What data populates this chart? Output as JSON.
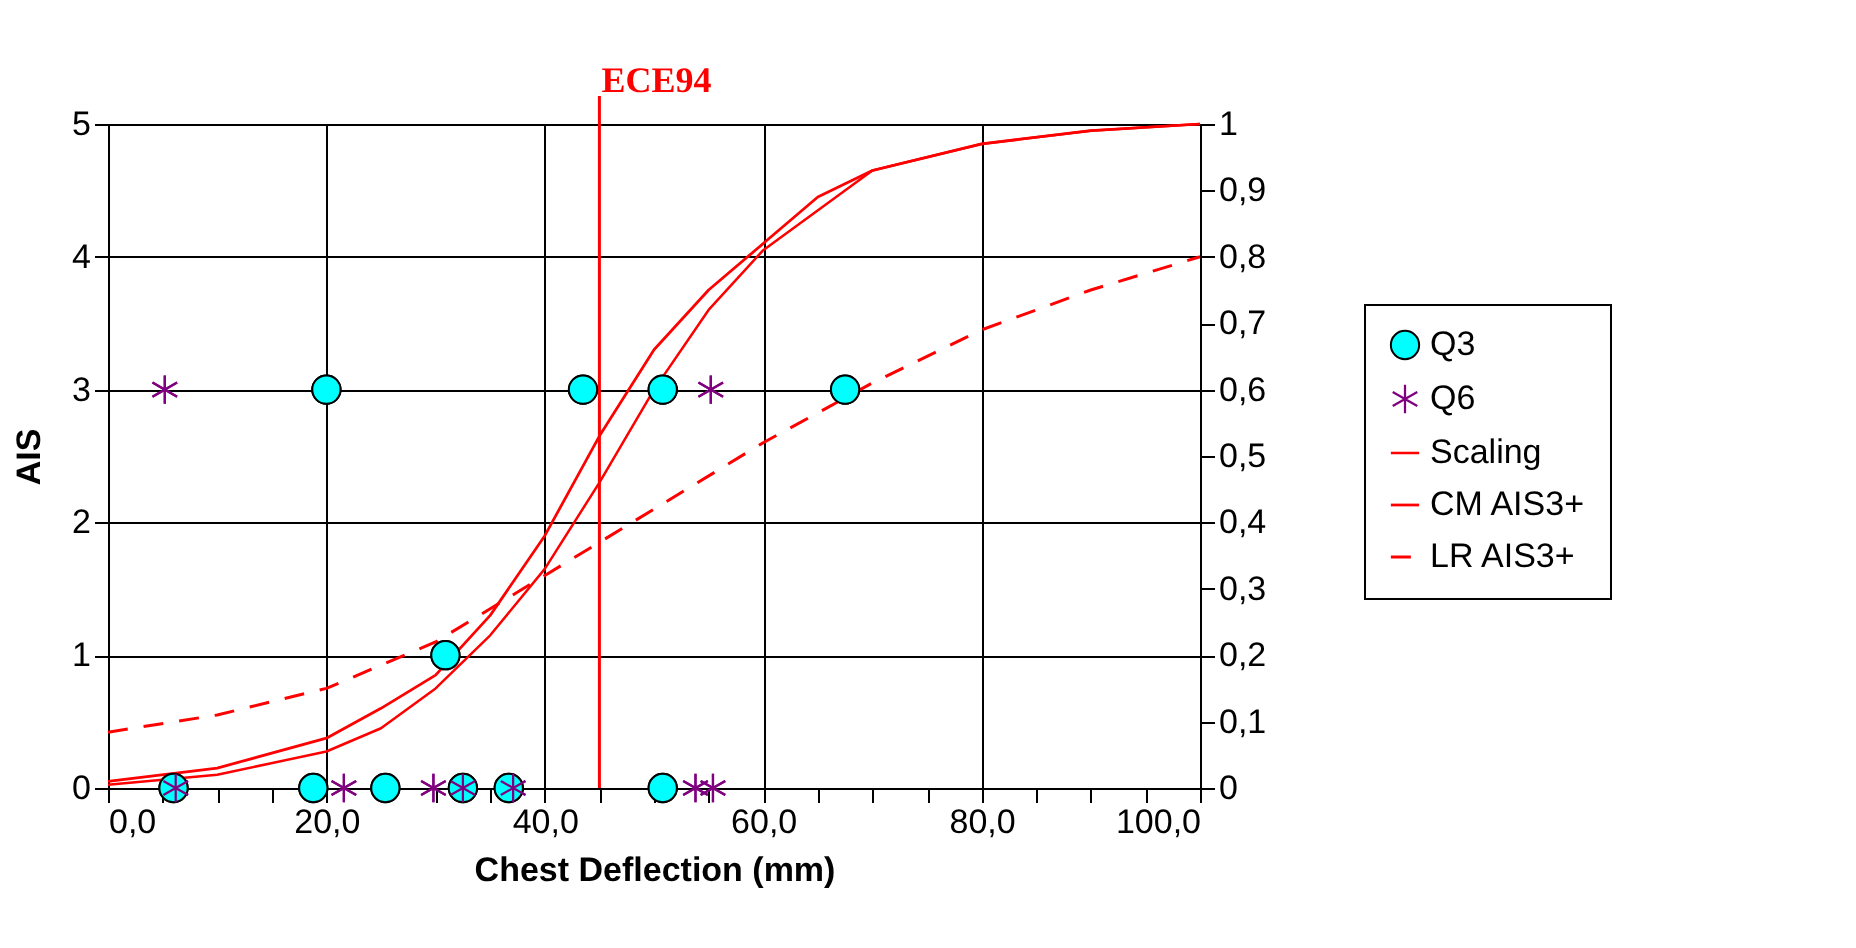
{
  "chart_data": {
    "type": "scatter",
    "xlabel": "Chest Deflection (mm)",
    "ylabel": "AIS",
    "xlim": [
      0,
      100
    ],
    "ylim": [
      0,
      5
    ],
    "y2lim": [
      0,
      1
    ],
    "xticks": [
      {
        "value": 0,
        "label": "0,0"
      },
      {
        "value": 5,
        "label": null
      },
      {
        "value": 10,
        "label": null
      },
      {
        "value": 15,
        "label": null
      },
      {
        "value": 20,
        "label": "20,0"
      },
      {
        "value": 25,
        "label": null
      },
      {
        "value": 30,
        "label": null
      },
      {
        "value": 35,
        "label": null
      },
      {
        "value": 40,
        "label": "40,0"
      },
      {
        "value": 45,
        "label": null
      },
      {
        "value": 50,
        "label": null
      },
      {
        "value": 55,
        "label": null
      },
      {
        "value": 60,
        "label": "60,0"
      },
      {
        "value": 65,
        "label": null
      },
      {
        "value": 70,
        "label": null
      },
      {
        "value": 75,
        "label": null
      },
      {
        "value": 80,
        "label": "80,0"
      },
      {
        "value": 85,
        "label": null
      },
      {
        "value": 90,
        "label": null
      },
      {
        "value": 95,
        "label": null
      },
      {
        "value": 100,
        "label": "100,0"
      }
    ],
    "yticks": [
      0,
      1,
      2,
      3,
      4,
      5
    ],
    "y2ticks": [
      0,
      {
        "value": 0.1,
        "label": "0,1"
      },
      {
        "value": 0.2,
        "label": "0,2"
      },
      {
        "value": 0.3,
        "label": "0,3"
      },
      {
        "value": 0.4,
        "label": "0,4"
      },
      {
        "value": 0.5,
        "label": "0,5"
      },
      {
        "value": 0.6,
        "label": "0,6"
      },
      {
        "value": 0.7,
        "label": "0,7"
      },
      {
        "value": 0.8,
        "label": "0,8"
      },
      {
        "value": 0.9,
        "label": "0,9"
      },
      1
    ],
    "grid": true,
    "legend": "right",
    "ref_lines": [
      {
        "axis": "x",
        "value": 45,
        "label": "ECE94",
        "color": "#ff0000"
      }
    ],
    "series": [
      {
        "name": "Q3",
        "marker": "circle",
        "color": "#00ffff",
        "x": [
          6.0,
          18.8,
          25.4,
          32.5,
          36.7,
          50.8,
          20.0,
          43.5,
          50.8,
          67.5,
          30.9
        ],
        "values": [
          0,
          0,
          0,
          0,
          0,
          0,
          3,
          3,
          3,
          3,
          1
        ]
      },
      {
        "name": "Q6",
        "marker": "cross",
        "color": "#800080",
        "x": [
          5.2,
          55.2,
          6.2,
          21.6,
          29.8,
          32.5,
          37.1,
          53.8,
          55.4
        ],
        "values": [
          3,
          3,
          0,
          0,
          0,
          0,
          0,
          0,
          0
        ]
      },
      {
        "name": "Scaling",
        "type": "line",
        "axis": "y2",
        "color": "#ff0000",
        "line_style": "solid",
        "x": [
          0,
          10,
          20,
          25,
          30,
          35,
          40,
          45,
          50,
          55,
          60,
          70,
          80,
          90,
          100
        ],
        "values": [
          0.005,
          0.02,
          0.055,
          0.09,
          0.15,
          0.23,
          0.33,
          0.46,
          0.6,
          0.72,
          0.81,
          0.93,
          0.97,
          0.99,
          1
        ]
      },
      {
        "name": "CM AIS3+",
        "type": "line",
        "axis": "y2",
        "color": "#ff0000",
        "line_style": "solid",
        "x": [
          0,
          10,
          20,
          25,
          30,
          35,
          40,
          45,
          50,
          55,
          60,
          65,
          70,
          80,
          90,
          100
        ],
        "values": [
          0.01,
          0.03,
          0.075,
          0.12,
          0.17,
          0.26,
          0.38,
          0.53,
          0.66,
          0.75,
          0.82,
          0.89,
          0.93,
          0.97,
          0.99,
          1
        ]
      },
      {
        "name": "LR AIS3+",
        "type": "line",
        "axis": "y2",
        "color": "#ff0000",
        "line_style": "dashed",
        "x": [
          0,
          10,
          20,
          30,
          40,
          50,
          60,
          70,
          80,
          90,
          100
        ],
        "values": [
          0.084,
          0.11,
          0.15,
          0.22,
          0.32,
          0.42,
          0.52,
          0.61,
          0.69,
          0.75,
          0.8
        ]
      }
    ]
  }
}
